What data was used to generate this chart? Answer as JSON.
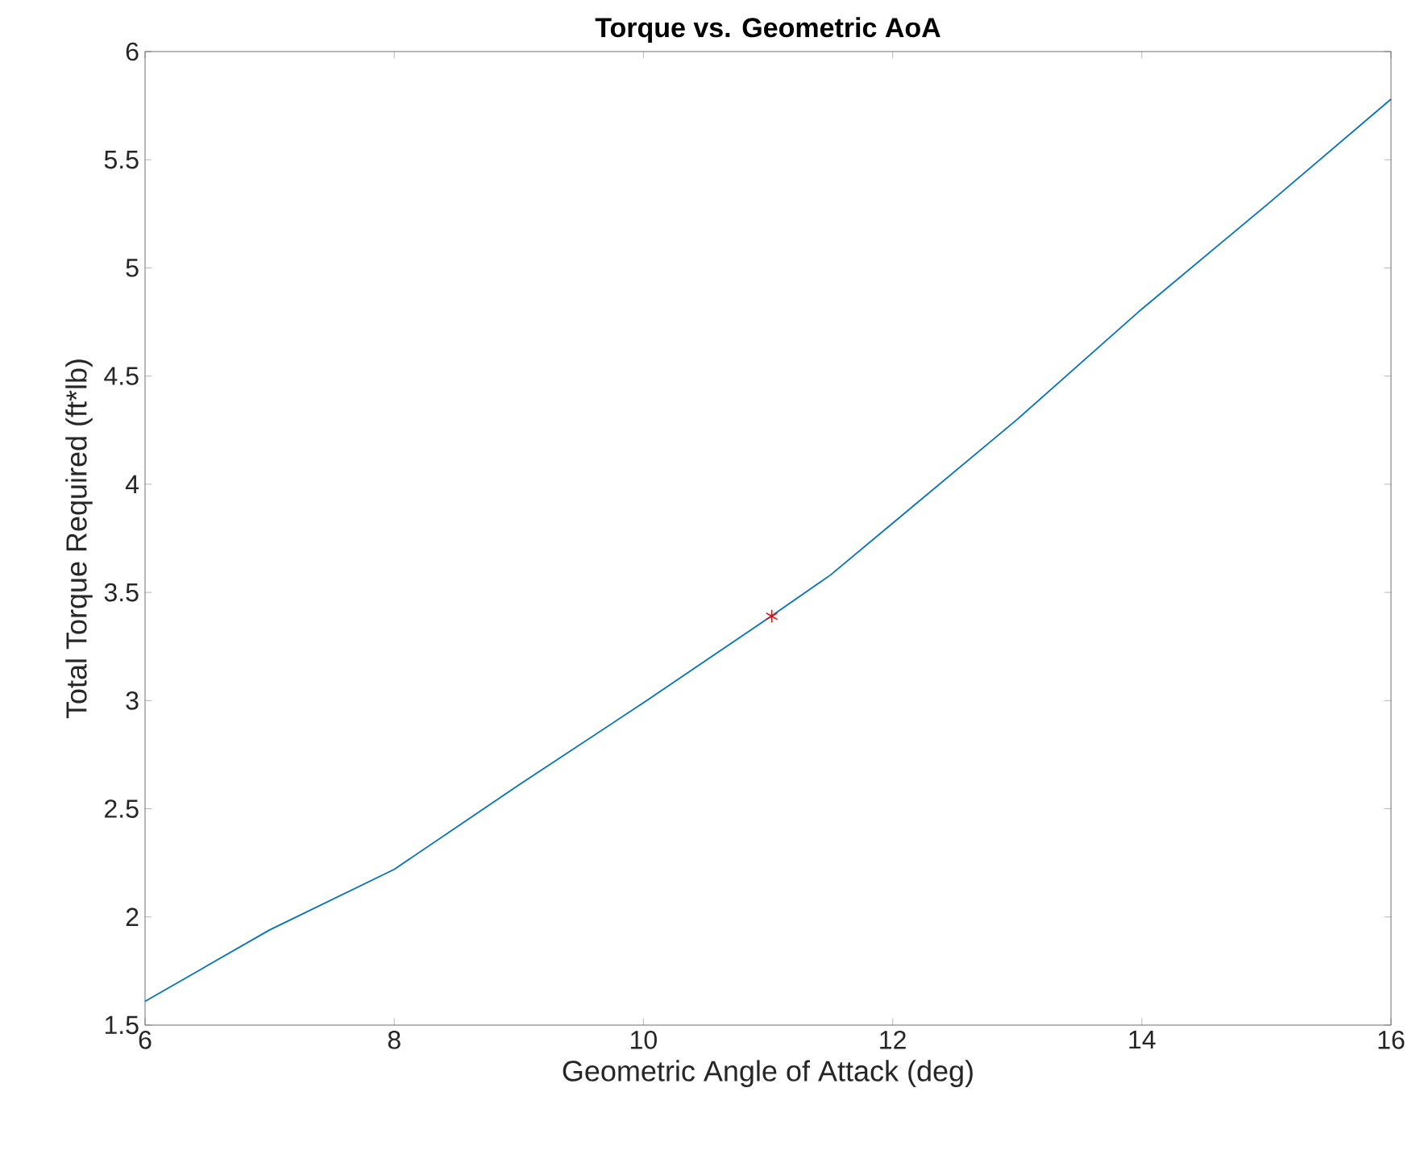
{
  "chart_data": {
    "type": "line",
    "title": "Torque vs. Geometric AoA",
    "xlabel": "Geometric Angle of Attack (deg)",
    "ylabel": "Total Torque Required (ft*lb)",
    "xlim": [
      6,
      16
    ],
    "ylim": [
      1.5,
      6
    ],
    "xticks": [
      6,
      8,
      10,
      12,
      14,
      16
    ],
    "yticks": [
      1.5,
      2,
      2.5,
      3,
      3.5,
      4,
      4.5,
      5,
      5.5,
      6
    ],
    "grid": false,
    "series": [
      {
        "color": "#0072bd",
        "marker": "none",
        "line_style": "solid",
        "x": [
          6,
          7,
          8,
          9,
          10,
          11,
          11.5,
          12,
          13,
          14,
          15,
          16
        ],
        "values": [
          1.61,
          1.94,
          2.22,
          2.61,
          2.99,
          3.38,
          3.58,
          3.82,
          4.3,
          4.81,
          5.29,
          5.78
        ]
      },
      {
        "type": "scatter",
        "color": "#ff0000",
        "marker": "cross",
        "x": [
          11.03
        ],
        "values": [
          3.39
        ]
      }
    ]
  }
}
